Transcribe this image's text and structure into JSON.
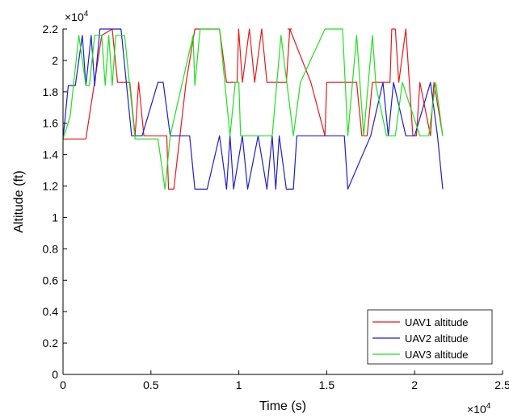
{
  "chart_data": {
    "type": "line",
    "title": "",
    "xlabel": "Time (s)",
    "ylabel": "Altitude (ft)",
    "xlim": [
      0,
      25000
    ],
    "ylim": [
      0,
      22000
    ],
    "x_ticks": [
      0,
      5000,
      10000,
      15000,
      20000,
      25000
    ],
    "x_tick_labels": [
      "0",
      "0.5",
      "1",
      "1.5",
      "2",
      "2.5"
    ],
    "y_ticks": [
      0,
      2000,
      4000,
      6000,
      8000,
      10000,
      12000,
      14000,
      16000,
      18000,
      20000,
      22000
    ],
    "y_tick_labels": [
      "0",
      "0.2",
      "0.4",
      "0.6",
      "0.8",
      "1",
      "1.2",
      "1.4",
      "1.6",
      "1.8",
      "2",
      "2.2"
    ],
    "x_exponent": {
      "base": "×10",
      "power": "4"
    },
    "y_exponent": {
      "base": "×10",
      "power": "4"
    },
    "grid": false,
    "legend_position": "bottom-right",
    "series": [
      {
        "name": "UAV1 altitude",
        "color": "#e41a1c",
        "x": [
          0,
          1300,
          2200,
          2800,
          3100,
          3800,
          4100,
          4300,
          4600,
          5800,
          5900,
          6000,
          6300,
          7000,
          7500,
          8100,
          8900,
          9300,
          9900,
          9990,
          10200,
          10600,
          10900,
          11300,
          11600,
          11900,
          12300,
          12700,
          12900,
          12800,
          12900,
          13000,
          12900,
          14100,
          14900,
          15000,
          16000,
          16700,
          17000,
          17300,
          17600,
          17900,
          18000,
          18300,
          18600,
          18700,
          18900,
          19100,
          19500,
          19900,
          20100,
          20300,
          20900,
          21100,
          21600
        ],
        "y": [
          15000,
          15000,
          21600,
          22000,
          18600,
          18600,
          15200,
          18600,
          15200,
          15200,
          15200,
          11800,
          11800,
          18600,
          22000,
          22000,
          22000,
          18600,
          18600,
          22000,
          18600,
          22000,
          18600,
          22000,
          18600,
          18600,
          18600,
          18600,
          22000,
          22000,
          22000,
          22000,
          22000,
          18600,
          15200,
          18600,
          18600,
          18600,
          15200,
          15200,
          18600,
          18600,
          18600,
          18600,
          18600,
          22000,
          22000,
          18600,
          22000,
          15200,
          15200,
          18600,
          15200,
          18600,
          15200
        ]
      },
      {
        "name": "UAV2 altitude",
        "color": "#1f1fc8",
        "x": [
          0,
          300,
          700,
          1100,
          1300,
          1600,
          1800,
          2100,
          2300,
          3300,
          3900,
          4200,
          4500,
          5400,
          5700,
          6100,
          7200,
          7500,
          8000,
          8200,
          8900,
          9300,
          9500,
          9700,
          10200,
          10500,
          11100,
          11600,
          11900,
          12100,
          12300,
          12700,
          13100,
          13300,
          14400,
          16000,
          16200,
          17500,
          18200,
          18500,
          18800,
          19500,
          20000,
          20900,
          21300,
          21600
        ],
        "y": [
          15000,
          18400,
          18400,
          21600,
          18400,
          21600,
          18400,
          22000,
          22000,
          22000,
          15200,
          15200,
          15200,
          18600,
          18600,
          15200,
          15200,
          11800,
          11800,
          11800,
          15200,
          11800,
          15200,
          11800,
          15200,
          11800,
          15200,
          11800,
          15200,
          11800,
          15200,
          11800,
          11800,
          15200,
          15200,
          15200,
          11800,
          15200,
          18600,
          15200,
          18600,
          15200,
          15200,
          18600,
          15200,
          11800
        ]
      },
      {
        "name": "UAV3 altitude",
        "color": "#1fe01f",
        "x": [
          0,
          400,
          900,
          1300,
          1500,
          1800,
          2200,
          2400,
          2600,
          2800,
          3000,
          3500,
          4100,
          5400,
          5800,
          6100,
          7400,
          7500,
          7800,
          8400,
          8900,
          9200,
          9500,
          9800,
          10000,
          10100,
          10900,
          11900,
          12400,
          13100,
          13500,
          14900,
          15400,
          15900,
          16200,
          16700,
          17100,
          17600,
          17800,
          18400,
          18900,
          19300,
          20300,
          20800,
          21200,
          21600
        ],
        "y": [
          15000,
          16400,
          21600,
          18400,
          18400,
          21600,
          21600,
          18400,
          21600,
          18400,
          21600,
          21600,
          15000,
          15000,
          11800,
          15200,
          21600,
          18400,
          22000,
          22000,
          22000,
          18600,
          15200,
          18600,
          18600,
          15200,
          15200,
          15200,
          21600,
          15200,
          18600,
          22000,
          22000,
          22000,
          15200,
          21600,
          15200,
          21600,
          18400,
          15200,
          15200,
          18600,
          15200,
          15200,
          18600,
          15200
        ]
      }
    ]
  }
}
